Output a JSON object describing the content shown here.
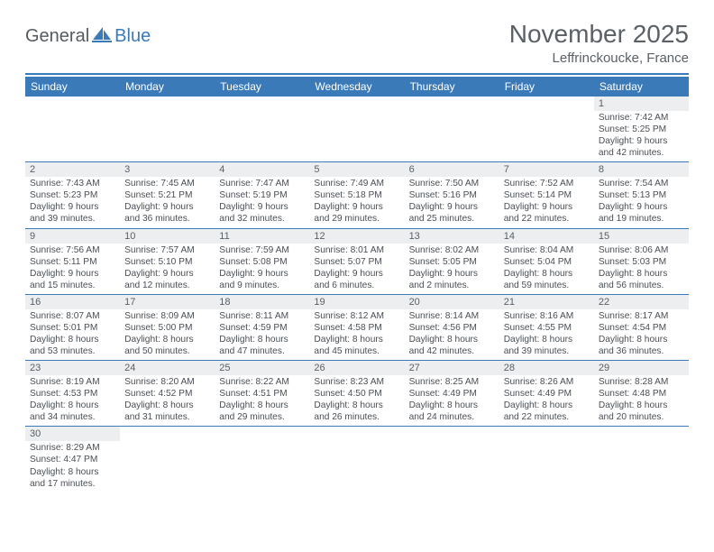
{
  "logo": {
    "text1": "General",
    "text2": "Blue"
  },
  "title": "November 2025",
  "location": "Leffrinckoucke, France",
  "colors": {
    "accent": "#3b7ab8",
    "header_grey": "#eceef0",
    "text": "#5a6066",
    "body_text": "#4a4f55",
    "white": "#ffffff"
  },
  "font": {
    "title_size": 28,
    "location_size": 15,
    "th_size": 12,
    "cell_size": 10.2
  },
  "weekdays": [
    "Sunday",
    "Monday",
    "Tuesday",
    "Wednesday",
    "Thursday",
    "Friday",
    "Saturday"
  ],
  "grid": [
    [
      {
        "empty": true
      },
      {
        "empty": true
      },
      {
        "empty": true
      },
      {
        "empty": true
      },
      {
        "empty": true
      },
      {
        "empty": true
      },
      {
        "n": "1",
        "sr": "7:42 AM",
        "ss": "5:25 PM",
        "dl": "9 hours and 42 minutes."
      }
    ],
    [
      {
        "n": "2",
        "sr": "7:43 AM",
        "ss": "5:23 PM",
        "dl": "9 hours and 39 minutes."
      },
      {
        "n": "3",
        "sr": "7:45 AM",
        "ss": "5:21 PM",
        "dl": "9 hours and 36 minutes."
      },
      {
        "n": "4",
        "sr": "7:47 AM",
        "ss": "5:19 PM",
        "dl": "9 hours and 32 minutes."
      },
      {
        "n": "5",
        "sr": "7:49 AM",
        "ss": "5:18 PM",
        "dl": "9 hours and 29 minutes."
      },
      {
        "n": "6",
        "sr": "7:50 AM",
        "ss": "5:16 PM",
        "dl": "9 hours and 25 minutes."
      },
      {
        "n": "7",
        "sr": "7:52 AM",
        "ss": "5:14 PM",
        "dl": "9 hours and 22 minutes."
      },
      {
        "n": "8",
        "sr": "7:54 AM",
        "ss": "5:13 PM",
        "dl": "9 hours and 19 minutes."
      }
    ],
    [
      {
        "n": "9",
        "sr": "7:56 AM",
        "ss": "5:11 PM",
        "dl": "9 hours and 15 minutes."
      },
      {
        "n": "10",
        "sr": "7:57 AM",
        "ss": "5:10 PM",
        "dl": "9 hours and 12 minutes."
      },
      {
        "n": "11",
        "sr": "7:59 AM",
        "ss": "5:08 PM",
        "dl": "9 hours and 9 minutes."
      },
      {
        "n": "12",
        "sr": "8:01 AM",
        "ss": "5:07 PM",
        "dl": "9 hours and 6 minutes."
      },
      {
        "n": "13",
        "sr": "8:02 AM",
        "ss": "5:05 PM",
        "dl": "9 hours and 2 minutes."
      },
      {
        "n": "14",
        "sr": "8:04 AM",
        "ss": "5:04 PM",
        "dl": "8 hours and 59 minutes."
      },
      {
        "n": "15",
        "sr": "8:06 AM",
        "ss": "5:03 PM",
        "dl": "8 hours and 56 minutes."
      }
    ],
    [
      {
        "n": "16",
        "sr": "8:07 AM",
        "ss": "5:01 PM",
        "dl": "8 hours and 53 minutes."
      },
      {
        "n": "17",
        "sr": "8:09 AM",
        "ss": "5:00 PM",
        "dl": "8 hours and 50 minutes."
      },
      {
        "n": "18",
        "sr": "8:11 AM",
        "ss": "4:59 PM",
        "dl": "8 hours and 47 minutes."
      },
      {
        "n": "19",
        "sr": "8:12 AM",
        "ss": "4:58 PM",
        "dl": "8 hours and 45 minutes."
      },
      {
        "n": "20",
        "sr": "8:14 AM",
        "ss": "4:56 PM",
        "dl": "8 hours and 42 minutes."
      },
      {
        "n": "21",
        "sr": "8:16 AM",
        "ss": "4:55 PM",
        "dl": "8 hours and 39 minutes."
      },
      {
        "n": "22",
        "sr": "8:17 AM",
        "ss": "4:54 PM",
        "dl": "8 hours and 36 minutes."
      }
    ],
    [
      {
        "n": "23",
        "sr": "8:19 AM",
        "ss": "4:53 PM",
        "dl": "8 hours and 34 minutes."
      },
      {
        "n": "24",
        "sr": "8:20 AM",
        "ss": "4:52 PM",
        "dl": "8 hours and 31 minutes."
      },
      {
        "n": "25",
        "sr": "8:22 AM",
        "ss": "4:51 PM",
        "dl": "8 hours and 29 minutes."
      },
      {
        "n": "26",
        "sr": "8:23 AM",
        "ss": "4:50 PM",
        "dl": "8 hours and 26 minutes."
      },
      {
        "n": "27",
        "sr": "8:25 AM",
        "ss": "4:49 PM",
        "dl": "8 hours and 24 minutes."
      },
      {
        "n": "28",
        "sr": "8:26 AM",
        "ss": "4:49 PM",
        "dl": "8 hours and 22 minutes."
      },
      {
        "n": "29",
        "sr": "8:28 AM",
        "ss": "4:48 PM",
        "dl": "8 hours and 20 minutes."
      }
    ],
    [
      {
        "n": "30",
        "sr": "8:29 AM",
        "ss": "4:47 PM",
        "dl": "8 hours and 17 minutes."
      },
      {
        "empty": true
      },
      {
        "empty": true
      },
      {
        "empty": true
      },
      {
        "empty": true
      },
      {
        "empty": true
      },
      {
        "empty": true
      }
    ]
  ],
  "labels": {
    "sunrise": "Sunrise: ",
    "sunset": "Sunset: ",
    "daylight": "Daylight: "
  }
}
